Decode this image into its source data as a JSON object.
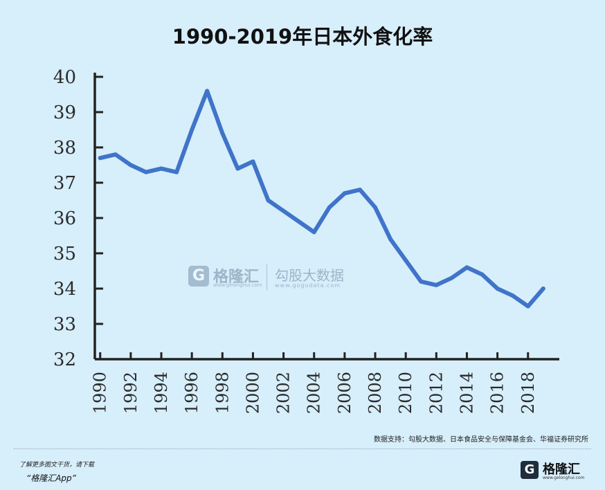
{
  "chart_data": {
    "type": "line",
    "title": "1990-2019年日本外食化率",
    "xlabel": "",
    "ylabel": "",
    "ylim": [
      32,
      40
    ],
    "yticks": [
      32,
      33,
      34,
      35,
      36,
      37,
      38,
      39,
      40
    ],
    "xticks": [
      1990,
      1992,
      1994,
      1996,
      1998,
      2000,
      2002,
      2004,
      2006,
      2008,
      2010,
      2012,
      2014,
      2016,
      2018
    ],
    "series": [
      {
        "name": "外食化率",
        "color": "#3f74c9",
        "x": [
          1990,
          1991,
          1992,
          1993,
          1994,
          1995,
          1996,
          1997,
          1998,
          1999,
          2000,
          2001,
          2002,
          2003,
          2004,
          2005,
          2006,
          2007,
          2008,
          2009,
          2010,
          2011,
          2012,
          2013,
          2014,
          2015,
          2016,
          2017,
          2018,
          2019
        ],
        "values": [
          37.7,
          37.8,
          37.5,
          37.3,
          37.4,
          37.3,
          38.5,
          39.6,
          38.4,
          37.4,
          37.6,
          36.5,
          36.2,
          35.9,
          35.6,
          36.3,
          36.7,
          36.8,
          36.3,
          35.4,
          34.8,
          34.2,
          34.1,
          34.3,
          34.6,
          34.4,
          34.0,
          33.8,
          33.5,
          34.0
        ]
      }
    ]
  },
  "watermark": {
    "logo_glyph": "G",
    "name": "格隆汇",
    "url": "www.gelonghui.com",
    "partner_name": "勾股大数据",
    "partner_url": "www.gogudata.com"
  },
  "source_note": "数据支持：勾股大数据、日本食品安全与保障基金会、华福证券研究所",
  "promo": {
    "line1": "了解更多图文干货，请下载",
    "line2": "“格隆汇App”"
  },
  "brand": {
    "logo_glyph": "G",
    "name": "格隆汇",
    "url": "www.gelonghui.com"
  }
}
